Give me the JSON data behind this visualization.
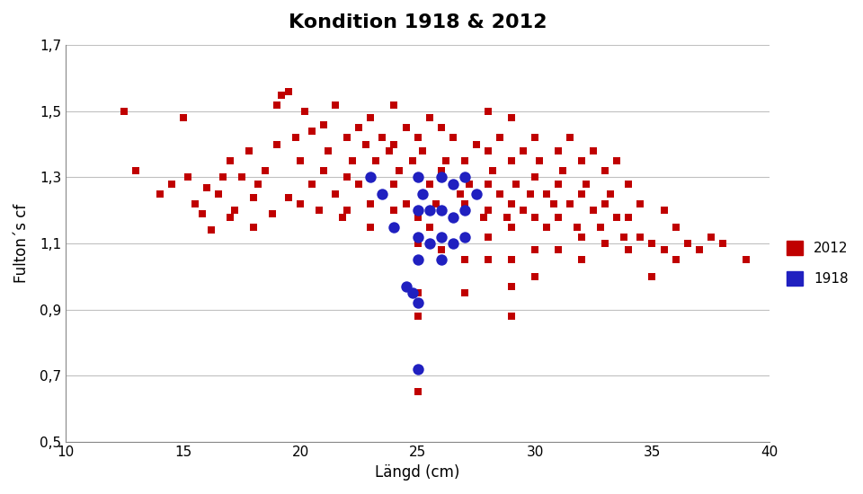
{
  "title": "Kondition 1918 & 2012",
  "xlabel": "Längd (cm)",
  "ylabel": "Fulton´s cf",
  "xlim": [
    10,
    40
  ],
  "ylim": [
    0.5,
    1.7
  ],
  "xticks": [
    10,
    15,
    20,
    25,
    30,
    35,
    40
  ],
  "yticks": [
    0.5,
    0.7,
    0.9,
    1.1,
    1.3,
    1.5,
    1.7
  ],
  "grid_color": "#c0c0c0",
  "red_color": "#c00000",
  "blue_color": "#2020c0",
  "red_2012": [
    [
      12.5,
      1.5
    ],
    [
      13.0,
      1.32
    ],
    [
      14.0,
      1.25
    ],
    [
      14.5,
      1.28
    ],
    [
      15.0,
      1.48
    ],
    [
      15.2,
      1.3
    ],
    [
      15.5,
      1.22
    ],
    [
      15.8,
      1.19
    ],
    [
      16.0,
      1.27
    ],
    [
      16.2,
      1.14
    ],
    [
      16.5,
      1.25
    ],
    [
      16.7,
      1.3
    ],
    [
      17.0,
      1.18
    ],
    [
      17.0,
      1.35
    ],
    [
      17.2,
      1.2
    ],
    [
      17.5,
      1.3
    ],
    [
      17.8,
      1.38
    ],
    [
      18.0,
      1.24
    ],
    [
      18.0,
      1.15
    ],
    [
      18.2,
      1.28
    ],
    [
      18.5,
      1.32
    ],
    [
      18.8,
      1.19
    ],
    [
      19.0,
      1.4
    ],
    [
      19.0,
      1.52
    ],
    [
      19.2,
      1.55
    ],
    [
      19.5,
      1.56
    ],
    [
      19.5,
      1.24
    ],
    [
      19.8,
      1.42
    ],
    [
      20.0,
      1.35
    ],
    [
      20.0,
      1.22
    ],
    [
      20.2,
      1.5
    ],
    [
      20.5,
      1.44
    ],
    [
      20.5,
      1.28
    ],
    [
      20.8,
      1.2
    ],
    [
      21.0,
      1.46
    ],
    [
      21.0,
      1.32
    ],
    [
      21.2,
      1.38
    ],
    [
      21.5,
      1.52
    ],
    [
      21.5,
      1.25
    ],
    [
      21.8,
      1.18
    ],
    [
      22.0,
      1.42
    ],
    [
      22.0,
      1.3
    ],
    [
      22.0,
      1.2
    ],
    [
      22.2,
      1.35
    ],
    [
      22.5,
      1.45
    ],
    [
      22.5,
      1.28
    ],
    [
      22.8,
      1.4
    ],
    [
      23.0,
      1.48
    ],
    [
      23.0,
      1.3
    ],
    [
      23.0,
      1.22
    ],
    [
      23.0,
      1.15
    ],
    [
      23.2,
      1.35
    ],
    [
      23.5,
      1.25
    ],
    [
      23.5,
      1.42
    ],
    [
      23.8,
      1.38
    ],
    [
      24.0,
      1.52
    ],
    [
      24.0,
      1.4
    ],
    [
      24.0,
      1.28
    ],
    [
      24.0,
      1.2
    ],
    [
      24.2,
      1.32
    ],
    [
      24.5,
      1.45
    ],
    [
      24.5,
      1.22
    ],
    [
      24.8,
      1.35
    ],
    [
      25.0,
      1.42
    ],
    [
      25.0,
      1.3
    ],
    [
      25.0,
      1.18
    ],
    [
      25.0,
      1.1
    ],
    [
      25.0,
      0.95
    ],
    [
      25.0,
      0.88
    ],
    [
      25.0,
      0.65
    ],
    [
      25.2,
      1.38
    ],
    [
      25.5,
      1.48
    ],
    [
      25.5,
      1.28
    ],
    [
      25.5,
      1.15
    ],
    [
      25.8,
      1.22
    ],
    [
      26.0,
      1.45
    ],
    [
      26.0,
      1.32
    ],
    [
      26.0,
      1.2
    ],
    [
      26.0,
      1.08
    ],
    [
      26.2,
      1.35
    ],
    [
      26.5,
      1.28
    ],
    [
      26.5,
      1.42
    ],
    [
      26.5,
      1.18
    ],
    [
      26.8,
      1.25
    ],
    [
      27.0,
      1.35
    ],
    [
      27.0,
      1.22
    ],
    [
      27.0,
      1.12
    ],
    [
      27.0,
      1.05
    ],
    [
      27.0,
      0.95
    ],
    [
      27.2,
      1.28
    ],
    [
      27.5,
      1.4
    ],
    [
      27.5,
      1.25
    ],
    [
      27.8,
      1.18
    ],
    [
      28.0,
      1.5
    ],
    [
      28.0,
      1.38
    ],
    [
      28.0,
      1.28
    ],
    [
      28.0,
      1.2
    ],
    [
      28.0,
      1.12
    ],
    [
      28.0,
      1.05
    ],
    [
      28.2,
      1.32
    ],
    [
      28.5,
      1.42
    ],
    [
      28.5,
      1.25
    ],
    [
      28.8,
      1.18
    ],
    [
      29.0,
      1.48
    ],
    [
      29.0,
      1.35
    ],
    [
      29.0,
      1.22
    ],
    [
      29.0,
      1.15
    ],
    [
      29.0,
      1.05
    ],
    [
      29.0,
      0.97
    ],
    [
      29.0,
      0.88
    ],
    [
      29.2,
      1.28
    ],
    [
      29.5,
      1.38
    ],
    [
      29.5,
      1.2
    ],
    [
      29.8,
      1.25
    ],
    [
      30.0,
      1.42
    ],
    [
      30.0,
      1.3
    ],
    [
      30.0,
      1.18
    ],
    [
      30.0,
      1.08
    ],
    [
      30.0,
      1.0
    ],
    [
      30.2,
      1.35
    ],
    [
      30.5,
      1.25
    ],
    [
      30.5,
      1.15
    ],
    [
      30.8,
      1.22
    ],
    [
      31.0,
      1.38
    ],
    [
      31.0,
      1.28
    ],
    [
      31.0,
      1.18
    ],
    [
      31.0,
      1.08
    ],
    [
      31.2,
      1.32
    ],
    [
      31.5,
      1.22
    ],
    [
      31.5,
      1.42
    ],
    [
      31.8,
      1.15
    ],
    [
      32.0,
      1.35
    ],
    [
      32.0,
      1.25
    ],
    [
      32.0,
      1.12
    ],
    [
      32.0,
      1.05
    ],
    [
      32.2,
      1.28
    ],
    [
      32.5,
      1.2
    ],
    [
      32.5,
      1.38
    ],
    [
      32.8,
      1.15
    ],
    [
      33.0,
      1.32
    ],
    [
      33.0,
      1.22
    ],
    [
      33.0,
      1.1
    ],
    [
      33.2,
      1.25
    ],
    [
      33.5,
      1.18
    ],
    [
      33.5,
      1.35
    ],
    [
      33.8,
      1.12
    ],
    [
      34.0,
      1.28
    ],
    [
      34.0,
      1.18
    ],
    [
      34.0,
      1.08
    ],
    [
      34.5,
      1.22
    ],
    [
      34.5,
      1.12
    ],
    [
      35.0,
      1.1
    ],
    [
      35.0,
      1.0
    ],
    [
      35.5,
      1.2
    ],
    [
      35.5,
      1.08
    ],
    [
      36.0,
      1.15
    ],
    [
      36.0,
      1.05
    ],
    [
      36.5,
      1.1
    ],
    [
      37.0,
      1.08
    ],
    [
      37.5,
      1.12
    ],
    [
      38.0,
      1.1
    ],
    [
      39.0,
      1.05
    ]
  ],
  "blue_1918": [
    [
      23.0,
      1.3
    ],
    [
      23.5,
      1.25
    ],
    [
      24.0,
      1.15
    ],
    [
      24.5,
      0.97
    ],
    [
      24.8,
      0.95
    ],
    [
      25.0,
      1.3
    ],
    [
      25.0,
      1.2
    ],
    [
      25.0,
      1.12
    ],
    [
      25.0,
      1.05
    ],
    [
      25.0,
      0.92
    ],
    [
      25.0,
      0.72
    ],
    [
      25.2,
      1.25
    ],
    [
      25.5,
      1.2
    ],
    [
      25.5,
      1.1
    ],
    [
      26.0,
      1.3
    ],
    [
      26.0,
      1.2
    ],
    [
      26.0,
      1.12
    ],
    [
      26.0,
      1.05
    ],
    [
      26.5,
      1.28
    ],
    [
      26.5,
      1.18
    ],
    [
      26.5,
      1.1
    ],
    [
      27.0,
      1.3
    ],
    [
      27.0,
      1.2
    ],
    [
      27.0,
      1.12
    ],
    [
      27.5,
      1.25
    ]
  ]
}
